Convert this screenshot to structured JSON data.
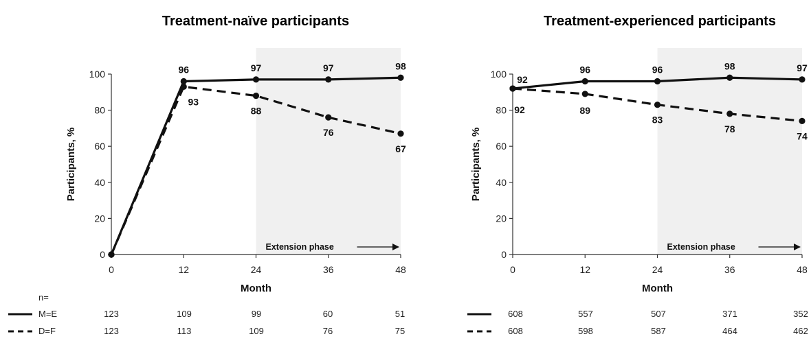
{
  "n_label": "n=",
  "chart_data": [
    {
      "type": "line",
      "title": "Treatment-naïve participants",
      "xlabel": "Month",
      "ylabel": "Participants, %",
      "x": [
        0,
        12,
        24,
        36,
        48
      ],
      "xlim": [
        0,
        48
      ],
      "ylim": [
        0,
        100
      ],
      "yticks": [
        0,
        20,
        40,
        60,
        80,
        100
      ],
      "grid": false,
      "shaded_region": {
        "x": [
          24,
          48
        ],
        "label": "Extension phase"
      },
      "series": [
        {
          "name": "M=E",
          "style": "solid",
          "values": [
            0,
            96,
            97,
            97,
            98
          ],
          "labels": [
            null,
            "96",
            "97",
            "97",
            "98"
          ],
          "n": [
            123,
            109,
            99,
            60,
            51
          ]
        },
        {
          "name": "D=F",
          "style": "dashed",
          "values": [
            0,
            93,
            88,
            76,
            67
          ],
          "labels": [
            null,
            "93",
            "88",
            "76",
            "67"
          ],
          "n": [
            123,
            113,
            109,
            76,
            75
          ]
        }
      ]
    },
    {
      "type": "line",
      "title": "Treatment-experienced participants",
      "xlabel": "Month",
      "ylabel": "Participants, %",
      "x": [
        0,
        12,
        24,
        36,
        48
      ],
      "xlim": [
        0,
        48
      ],
      "ylim": [
        0,
        100
      ],
      "yticks": [
        0,
        20,
        40,
        60,
        80,
        100
      ],
      "grid": false,
      "shaded_region": {
        "x": [
          24,
          48
        ],
        "label": "Extension phase"
      },
      "series": [
        {
          "name": "M=E",
          "style": "solid",
          "values": [
            92,
            96,
            96,
            98,
            97
          ],
          "labels": [
            "92",
            "96",
            "96",
            "98",
            "97"
          ],
          "n": [
            608,
            557,
            507,
            371,
            352
          ]
        },
        {
          "name": "D=F",
          "style": "dashed",
          "values": [
            92,
            89,
            83,
            78,
            74
          ],
          "labels": [
            "92",
            "89",
            "83",
            "78",
            "74"
          ],
          "n": [
            608,
            598,
            587,
            464,
            462
          ]
        }
      ]
    }
  ]
}
